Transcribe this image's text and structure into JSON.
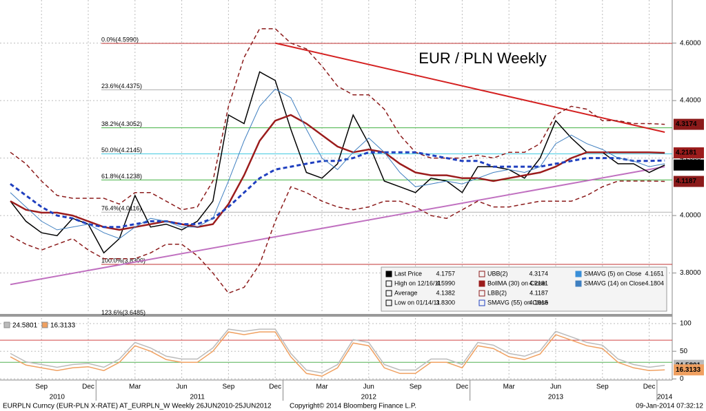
{
  "chart_data": [
    {
      "type": "line",
      "title": "EUR / PLN Weekly",
      "title_color": "#d40000",
      "categories": [
        null,
        null,
        "Sep",
        null,
        null,
        "Dec",
        null,
        null,
        "Mar",
        null,
        null,
        "Jun",
        null,
        null,
        "Sep",
        null,
        null,
        "Dec",
        null,
        null,
        "Mar",
        null,
        null,
        "Jun",
        null,
        null,
        "Sep",
        null,
        null,
        "Dec",
        null,
        null,
        "Mar",
        null,
        null,
        "Jun",
        null,
        null,
        "Sep",
        null,
        null,
        "Dec",
        null
      ],
      "year_labels": [
        null,
        null,
        null,
        "2010",
        null,
        null,
        null,
        null,
        null,
        null,
        null,
        null,
        "2011",
        null,
        null,
        null,
        null,
        null,
        null,
        null,
        null,
        null,
        null,
        "2012",
        null,
        null,
        null,
        null,
        null,
        null,
        null,
        null,
        null,
        null,
        null,
        "2013",
        null,
        null,
        null,
        null,
        null,
        null,
        "2014"
      ],
      "ylim": [
        3.66,
        4.75
      ],
      "yticks": [
        {
          "value": 3.8,
          "label": "3.8000"
        },
        {
          "value": 4.0,
          "label": "4.0000"
        },
        {
          "value": 4.2,
          "label": "4.2000"
        },
        {
          "value": 4.4,
          "label": "4.4000"
        },
        {
          "value": 4.6,
          "label": "4.6000"
        }
      ],
      "grid": true,
      "series": [
        {
          "name": "Last Price",
          "color": "#000000",
          "width": 1.5,
          "dash": false,
          "tag": true,
          "last": 4.1757,
          "values": [
            4.05,
            3.98,
            3.94,
            3.93,
            3.99,
            3.97,
            3.87,
            3.92,
            4.07,
            3.96,
            3.97,
            3.95,
            3.98,
            4.05,
            4.35,
            4.32,
            4.5,
            4.47,
            4.3,
            4.15,
            4.13,
            4.18,
            4.35,
            4.25,
            4.12,
            4.1,
            4.08,
            4.13,
            4.12,
            4.08,
            4.17,
            4.17,
            4.16,
            4.13,
            4.2,
            4.33,
            4.27,
            4.22,
            4.22,
            4.18,
            4.18,
            4.15,
            4.1757
          ]
        },
        {
          "name": "UBB(2)",
          "color": "#8b1a1a",
          "width": 1.5,
          "dash": true,
          "tag": true,
          "last": 4.3174,
          "values": [
            4.22,
            4.18,
            4.12,
            4.07,
            4.06,
            4.06,
            4.06,
            4.04,
            4.08,
            4.08,
            4.05,
            4.02,
            4.03,
            4.12,
            4.38,
            4.55,
            4.65,
            4.65,
            4.6,
            4.58,
            4.52,
            4.45,
            4.42,
            4.42,
            4.37,
            4.28,
            4.22,
            4.2,
            4.2,
            4.2,
            4.21,
            4.2,
            4.22,
            4.22,
            4.25,
            4.35,
            4.38,
            4.37,
            4.33,
            4.33,
            4.32,
            4.32,
            4.3174
          ]
        },
        {
          "name": "BollMA (30) on Close",
          "color": "#9b1c1c",
          "width": 2.5,
          "dash": false,
          "tag": true,
          "last": 4.2181,
          "values": [
            4.05,
            4.02,
            4.01,
            4.01,
            4.0,
            3.98,
            3.96,
            3.95,
            3.96,
            3.97,
            3.98,
            3.97,
            3.96,
            3.97,
            4.04,
            4.14,
            4.26,
            4.33,
            4.35,
            4.32,
            4.28,
            4.24,
            4.22,
            4.23,
            4.22,
            4.18,
            4.15,
            4.14,
            4.14,
            4.13,
            4.13,
            4.12,
            4.13,
            4.14,
            4.15,
            4.17,
            4.2,
            4.22,
            4.22,
            4.22,
            4.22,
            4.22,
            4.2181
          ]
        },
        {
          "name": "LBB(2)",
          "color": "#8b1a1a",
          "width": 1.5,
          "dash": true,
          "tag": true,
          "last": 4.1187,
          "values": [
            3.93,
            3.9,
            3.88,
            3.9,
            3.92,
            3.88,
            3.85,
            3.85,
            3.85,
            3.87,
            3.9,
            3.9,
            3.86,
            3.8,
            3.73,
            3.75,
            3.83,
            3.98,
            4.1,
            4.08,
            4.05,
            4.03,
            4.02,
            4.03,
            4.05,
            4.05,
            4.03,
            4.0,
            3.99,
            4.02,
            4.05,
            4.03,
            4.03,
            4.04,
            4.05,
            4.05,
            4.05,
            4.07,
            4.1,
            4.12,
            4.12,
            4.12,
            4.1187
          ]
        },
        {
          "name": "SMAVG (55) on Close",
          "color": "#1f3fbf",
          "width": 3,
          "dash": true,
          "tag": false,
          "last": 4.1915,
          "values": [
            4.11,
            4.07,
            4.03,
            4.0,
            3.99,
            3.97,
            3.96,
            3.96,
            3.97,
            3.98,
            3.98,
            3.97,
            3.97,
            3.99,
            4.03,
            4.08,
            4.13,
            4.16,
            4.17,
            4.18,
            4.19,
            4.19,
            4.2,
            4.22,
            4.22,
            4.22,
            4.22,
            4.21,
            4.2,
            4.19,
            4.19,
            4.17,
            4.17,
            4.17,
            4.17,
            4.18,
            4.19,
            4.2,
            4.2,
            4.2,
            4.19,
            4.19,
            4.1915
          ]
        },
        {
          "name": "SMAVG (14) on Close",
          "color": "#3f7fc0",
          "width": 1,
          "dash": false,
          "tag": false,
          "last": 4.1804,
          "values": [
            4.08,
            4.03,
            3.98,
            3.95,
            3.96,
            3.97,
            3.94,
            3.92,
            3.96,
            3.99,
            3.98,
            3.96,
            3.96,
            3.99,
            4.12,
            4.26,
            4.38,
            4.44,
            4.41,
            4.3,
            4.2,
            4.16,
            4.22,
            4.27,
            4.22,
            4.15,
            4.1,
            4.11,
            4.12,
            4.11,
            4.13,
            4.15,
            4.16,
            4.15,
            4.17,
            4.25,
            4.28,
            4.25,
            4.23,
            4.2,
            4.19,
            4.17,
            4.1804
          ]
        }
      ],
      "legend_extra": [
        {
          "name": "SMAVG (5) on Close",
          "color": "#3a8fd8",
          "last": 4.1651
        }
      ],
      "stats": [
        {
          "name": "High on 12/16/11",
          "value": {
            "value": 4.599,
            "label": "4.5990"
          }
        },
        {
          "name": "Average",
          "value": 4.1382
        },
        {
          "name": "Low on 01/14/11",
          "value": {
            "value": 3.83,
            "label": "3.8300"
          }
        }
      ],
      "fib_levels": [
        {
          "label": "0.0%(4.5990)",
          "value": 4.599,
          "color": "#c03030"
        },
        {
          "label": "23.6%(4.4375)",
          "value": 4.4375,
          "color": "#b0b0b0"
        },
        {
          "label": "38.2%(4.3052)",
          "value": 4.3052,
          "color": "#40b040"
        },
        {
          "label": "50.0%(4.2145)",
          "value": 4.2145,
          "color": "#40c8e0"
        },
        {
          "label": "61.8%(4.1238)",
          "value": 4.1238,
          "color": "#40b040"
        },
        {
          "label": "76.4%(4.0116)",
          "value": 4.0116,
          "color": "#b0b0b0"
        },
        {
          "label": "100.0%(3.8300)",
          "value": 3.83,
          "color": "#c03030"
        },
        {
          "label": "123.6%(3.6485)",
          "value": 3.6485,
          "color": "#b0b0b0"
        }
      ],
      "trendlines": [
        {
          "color": "#d42020",
          "points": [
            [
              17,
              4.6
            ],
            [
              42,
              4.29
            ]
          ]
        },
        {
          "color": "#c070c0",
          "points": [
            [
              0,
              3.76
            ],
            [
              42,
              4.17
            ]
          ]
        }
      ]
    },
    {
      "type": "line",
      "ylim": [
        -2,
        110
      ],
      "yticks": [
        0,
        50,
        100
      ],
      "grid": true,
      "hlines": [
        {
          "value": 70,
          "color": "#d04040"
        },
        {
          "value": 30,
          "color": "#50b050"
        }
      ],
      "series": [
        {
          "name": null,
          "color": "#bbbbbb",
          "width": 1.5,
          "dash": false,
          "tag": true,
          "last": 24.5801,
          "values": [
            46,
            31,
            26,
            21,
            26,
            28,
            21,
            36,
            66,
            56,
            41,
            36,
            36,
            56,
            90,
            86,
            90,
            90,
            46,
            16,
            11,
            26,
            71,
            66,
            26,
            16,
            16,
            36,
            36,
            26,
            66,
            61,
            46,
            41,
            51,
            86,
            76,
            66,
            61,
            36,
            26,
            21,
            24.5801
          ]
        },
        {
          "name": null,
          "color": "#f0a060",
          "width": 1.5,
          "dash": false,
          "tag": true,
          "last": 16.3133,
          "values": [
            40,
            25,
            20,
            15,
            20,
            22,
            15,
            30,
            60,
            50,
            35,
            30,
            30,
            50,
            85,
            80,
            85,
            85,
            40,
            10,
            5,
            20,
            65,
            60,
            20,
            10,
            10,
            30,
            30,
            20,
            60,
            55,
            40,
            35,
            45,
            80,
            70,
            60,
            55,
            30,
            20,
            15,
            16.3133
          ]
        }
      ]
    }
  ],
  "footer": {
    "left": "EURPLN Curncy (EUR-PLN X-RATE) AT_EURPLN_W  Weekly 26JUN2010-25JUN2012",
    "center": "Copyright© 2014 Bloomberg Finance L.P.",
    "right": "09-Jan-2014 07:32:12"
  }
}
